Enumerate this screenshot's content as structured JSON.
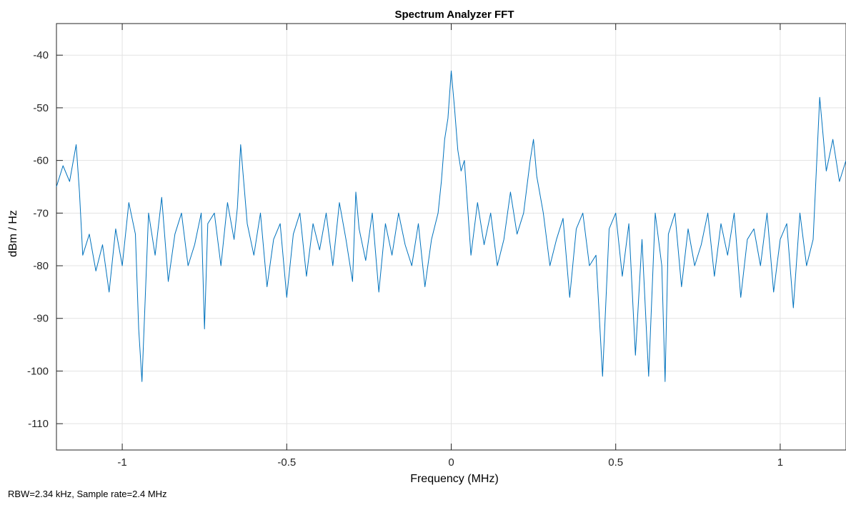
{
  "footnote": "RBW=2.34 kHz, Sample rate=2.4 MHz",
  "chart_data": {
    "type": "line",
    "title": "Spectrum Analyzer FFT",
    "xlabel": "Frequency (MHz)",
    "ylabel": "dBm / Hz",
    "xlim": [
      -1.2,
      1.2
    ],
    "ylim": [
      -115,
      -34
    ],
    "xticks": [
      -1,
      -0.5,
      0,
      0.5,
      1
    ],
    "xtick_labels": [
      "-1",
      "-0.5",
      "0",
      "0.5",
      "1"
    ],
    "yticks": [
      -40,
      -50,
      -60,
      -70,
      -80,
      -90,
      -100,
      -110
    ],
    "ytick_labels": [
      "-40",
      "-50",
      "-60",
      "-70",
      "-80",
      "-90",
      "-100",
      "-110"
    ],
    "grid": true,
    "line_color": "#0072BD",
    "series": [
      {
        "x": [
          -1.2,
          -1.18,
          -1.16,
          -1.14,
          -1.13,
          -1.12,
          -1.1,
          -1.08,
          -1.06,
          -1.04,
          -1.02,
          -1.0,
          -0.98,
          -0.96,
          -0.95,
          -0.94,
          -0.92,
          -0.9,
          -0.88,
          -0.86,
          -0.84,
          -0.82,
          -0.8,
          -0.78,
          -0.76,
          -0.75,
          -0.74,
          -0.72,
          -0.7,
          -0.68,
          -0.66,
          -0.65,
          -0.64,
          -0.62,
          -0.6,
          -0.58,
          -0.56,
          -0.54,
          -0.52,
          -0.5,
          -0.48,
          -0.46,
          -0.44,
          -0.42,
          -0.4,
          -0.38,
          -0.36,
          -0.34,
          -0.32,
          -0.3,
          -0.29,
          -0.28,
          -0.26,
          -0.24,
          -0.22,
          -0.2,
          -0.18,
          -0.16,
          -0.14,
          -0.12,
          -0.1,
          -0.08,
          -0.06,
          -0.04,
          -0.03,
          -0.02,
          -0.01,
          0.0,
          0.01,
          0.02,
          0.03,
          0.04,
          0.06,
          0.08,
          0.1,
          0.12,
          0.14,
          0.16,
          0.18,
          0.2,
          0.22,
          0.24,
          0.25,
          0.26,
          0.28,
          0.3,
          0.32,
          0.34,
          0.36,
          0.38,
          0.4,
          0.42,
          0.44,
          0.46,
          0.48,
          0.5,
          0.52,
          0.54,
          0.56,
          0.58,
          0.6,
          0.62,
          0.64,
          0.65,
          0.66,
          0.68,
          0.7,
          0.72,
          0.74,
          0.76,
          0.78,
          0.8,
          0.82,
          0.84,
          0.86,
          0.88,
          0.9,
          0.92,
          0.94,
          0.96,
          0.98,
          1.0,
          1.02,
          1.04,
          1.06,
          1.08,
          1.1,
          1.12,
          1.14,
          1.16,
          1.18,
          1.2
        ],
        "y": [
          -65,
          -61,
          -64,
          -57,
          -66,
          -78,
          -74,
          -81,
          -76,
          -85,
          -73,
          -80,
          -68,
          -74,
          -92,
          -102,
          -70,
          -78,
          -67,
          -83,
          -74,
          -70,
          -80,
          -76,
          -70,
          -92,
          -72,
          -70,
          -80,
          -68,
          -75,
          -69,
          -57,
          -72,
          -78,
          -70,
          -84,
          -75,
          -72,
          -86,
          -74,
          -70,
          -82,
          -72,
          -77,
          -70,
          -80,
          -68,
          -75,
          -83,
          -66,
          -73,
          -79,
          -70,
          -85,
          -72,
          -78,
          -70,
          -76,
          -80,
          -72,
          -84,
          -75,
          -70,
          -64,
          -56,
          -52,
          -43,
          -50,
          -58,
          -62,
          -60,
          -78,
          -68,
          -76,
          -70,
          -80,
          -75,
          -66,
          -74,
          -70,
          -60,
          -56,
          -63,
          -70,
          -80,
          -75,
          -71,
          -86,
          -73,
          -70,
          -80,
          -78,
          -101,
          -73,
          -70,
          -82,
          -72,
          -97,
          -75,
          -101,
          -70,
          -80,
          -102,
          -74,
          -70,
          -84,
          -73,
          -80,
          -76,
          -70,
          -82,
          -72,
          -78,
          -70,
          -86,
          -75,
          -73,
          -80,
          -70,
          -85,
          -75,
          -72,
          -88,
          -70,
          -80,
          -75,
          -48,
          -62,
          -56,
          -64,
          -60
        ]
      }
    ]
  }
}
